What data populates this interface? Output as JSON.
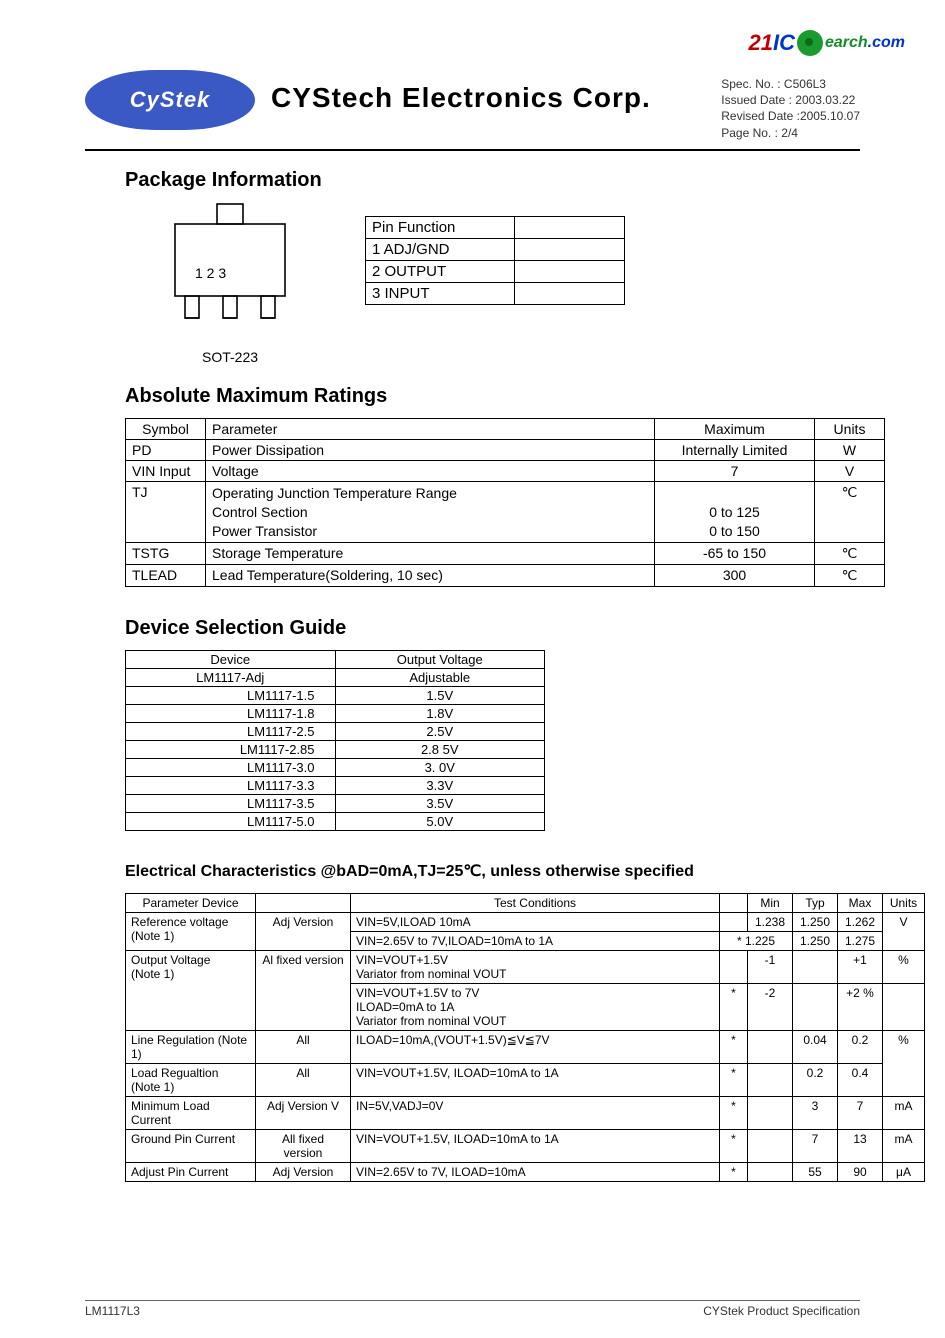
{
  "watermark": {
    "two": "21",
    "ic": "IC",
    "search": "earch",
    "com": ".com"
  },
  "logo_text": "CyStek",
  "company": "CYStech Electronics Corp.",
  "meta": {
    "spec": "Spec. No. : C506L3",
    "issued": "Issued Date : 2003.03.22",
    "revised": "Revised Date :2005.10.07",
    "page": "Page No. : 2/4"
  },
  "sections": {
    "pkg": "Package Information",
    "amr": "Absolute Maximum Ratings",
    "dsg": "Device Selection Guide",
    "ec": "Electrical Characteristics   @bAD=0mA,TJ=25℃, unless otherwise specified"
  },
  "sot": {
    "label": "SOT-223",
    "pins_label": "1 2 3",
    "svg": {
      "stroke": "#000000",
      "stroke_width": 1.5,
      "fill": "#ffffff"
    }
  },
  "pin_table": {
    "header": "Pin Function",
    "rows": [
      "1 ADJ/GND",
      "2 OUTPUT",
      "3 INPUT"
    ]
  },
  "amr": {
    "headers": [
      "Symbol",
      "Parameter",
      "Maximum",
      "Units"
    ],
    "rows": [
      {
        "sym": "PD",
        "param": "Power Dissipation",
        "max": "Internally Limited",
        "unit": "W"
      },
      {
        "sym": "VIN Input",
        "param": "Voltage",
        "max": "7",
        "unit": "V"
      },
      {
        "sym": "TJ",
        "param": "Operating Junction Temperature Range\nControl Section\nPower Transistor",
        "max": "\n0 to 125\n0 to 150",
        "unit": "℃"
      },
      {
        "sym": "TSTG",
        "param": "Storage Temperature",
        "max": "-65 to 150",
        "unit": "℃"
      },
      {
        "sym": "TLEAD",
        "param": "Lead Temperature(Soldering, 10 sec)",
        "max": "300",
        "unit": "℃"
      }
    ]
  },
  "dsg": {
    "headers": [
      "Device",
      "Output Voltage"
    ],
    "rows": [
      [
        "LM1117-Adj",
        "Adjustable"
      ],
      [
        "LM1117-1.5",
        "1.5V"
      ],
      [
        "LM1117-1.8",
        "1.8V"
      ],
      [
        "LM1117-2.5",
        "2.5V"
      ],
      [
        "LM1117-2.85",
        "2.8 5V"
      ],
      [
        "LM1117-3.0",
        "3. 0V"
      ],
      [
        "LM1117-3.3",
        "3.3V"
      ],
      [
        "LM1117-3.5",
        "3.5V"
      ],
      [
        "LM1117-5.0",
        "5.0V"
      ]
    ]
  },
  "ec": {
    "headers": [
      "Parameter Device",
      "",
      "Test Conditions",
      "",
      "Min",
      "Typ",
      "Max",
      "Units"
    ],
    "rows": [
      {
        "param": "Reference voltage\n(Note 1)",
        "device": "Adj Version",
        "rowspan_dev": 2,
        "tc": "VIN=5V,ILOAD 10mA",
        "star": "",
        "min": "1.238",
        "typ": "1.250",
        "max": "1.262",
        "unit": "V",
        "rowspan_u": 2
      },
      {
        "tc": "VIN=2.65V to 7V,ILOAD=10mA to 1A",
        "star": "* 1.225",
        "min": "",
        "typ": "1.250",
        "max": "1.275"
      },
      {
        "param": "Output Voltage\n(Note 1)",
        "device": "Al  fixed version",
        "rowspan_p": 2,
        "rowspan_dev": 2,
        "tc": "VIN=VOUT+1.5V\nVariator from nominal VOUT",
        "star": "",
        "min": "-1",
        "typ": "",
        "max": "+1",
        "unit": "%",
        "rowspan_u": 1
      },
      {
        "tc": "VIN=VOUT+1.5V to 7V\nILOAD=0mA to 1A\nVariator from nominal VOUT",
        "star": "*",
        "min": "-2",
        "typ": "",
        "max": "+2 %",
        "unit": ""
      },
      {
        "param": "Line Regulation (Note 1)",
        "device": "All",
        "tc": "ILOAD=10mA,(VOUT+1.5V)≦V≦7V",
        "star": "*",
        "min": "",
        "typ": "0.04",
        "max": "0.2",
        "unit": "",
        "rowspan_u": 0
      },
      {
        "param": "Load Regualtion (Note 1)",
        "device": "All",
        "tc": "VIN=VOUT+1.5V, ILOAD=10mA to 1A",
        "star": "*",
        "min": "",
        "typ": "0.2",
        "max": "0.4",
        "unit": "%"
      },
      {
        "param": "Minimum Load Current",
        "device": "Adj Version V",
        "tc": "IN=5V,VADJ=0V",
        "star": "*",
        "min": "",
        "typ": "3",
        "max": "7",
        "unit": "mA"
      },
      {
        "param": "Ground Pin Current",
        "device": "All fixed version",
        "tc": "VIN=VOUT+1.5V, ILOAD=10mA to 1A",
        "star": "*",
        "min": "",
        "typ": "7",
        "max": "13",
        "unit": "mA"
      },
      {
        "param": "Adjust Pin Current",
        "device": "Adj Version",
        "tc": "VIN=2.65V to 7V, ILOAD=10mA",
        "star": "*",
        "min": "",
        "typ": "55",
        "max": "90",
        "unit": "μA"
      }
    ]
  },
  "footer": {
    "left": "LM1117L3",
    "right": "CYStek Product Specification"
  },
  "colors": {
    "logo_bg": "#3b59c4",
    "wm_red": "#c00000",
    "wm_blue": "#0033cc",
    "wm_green": "#148e25",
    "border": "#000000",
    "page_bg": "#ffffff"
  }
}
